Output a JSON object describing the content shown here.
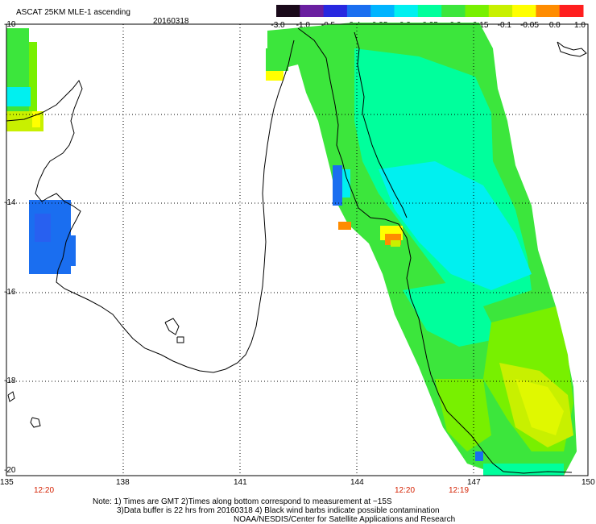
{
  "header": {
    "product": "ASCAT 25KM MLE-1 ascending",
    "date": "20160318"
  },
  "colorbar": {
    "labels": [
      "-3.0",
      "-1.0",
      "-0.5",
      "-0.4",
      "-0.35",
      "-0.3",
      "-0.25",
      "-0.2",
      "-0.15",
      "-0.1",
      "-0.05",
      "0.0",
      "1.0"
    ],
    "colors": [
      "#1a0a1a",
      "#6a1fa0",
      "#2828e0",
      "#1a6ef0",
      "#00b4ff",
      "#00f0f0",
      "#00ff9c",
      "#3ce63c",
      "#78f000",
      "#c8f000",
      "#ffff00",
      "#ff8c00",
      "#ff1e1e"
    ]
  },
  "map": {
    "lat_labels": [
      "-10",
      "-14",
      "-16",
      "-18",
      "-20"
    ],
    "lon_labels": [
      "135",
      "138",
      "141",
      "144",
      "147",
      "150"
    ],
    "time_labels": [
      "12:20",
      "12:20",
      "12:19"
    ],
    "time_color": "#d42000",
    "coastline_color": "#000000",
    "grid_color": "#000000"
  },
  "footer": {
    "line1": "Note: 1) Times are GMT 2)Times along bottom correspond to measurement at ~15S",
    "line2": "3)Data buffer is 22 hrs from 20160318 4) Black wind barbs indicate possible contamination",
    "line3": "NOAA/NESDIS/Center for Satellite Applications and Research"
  }
}
